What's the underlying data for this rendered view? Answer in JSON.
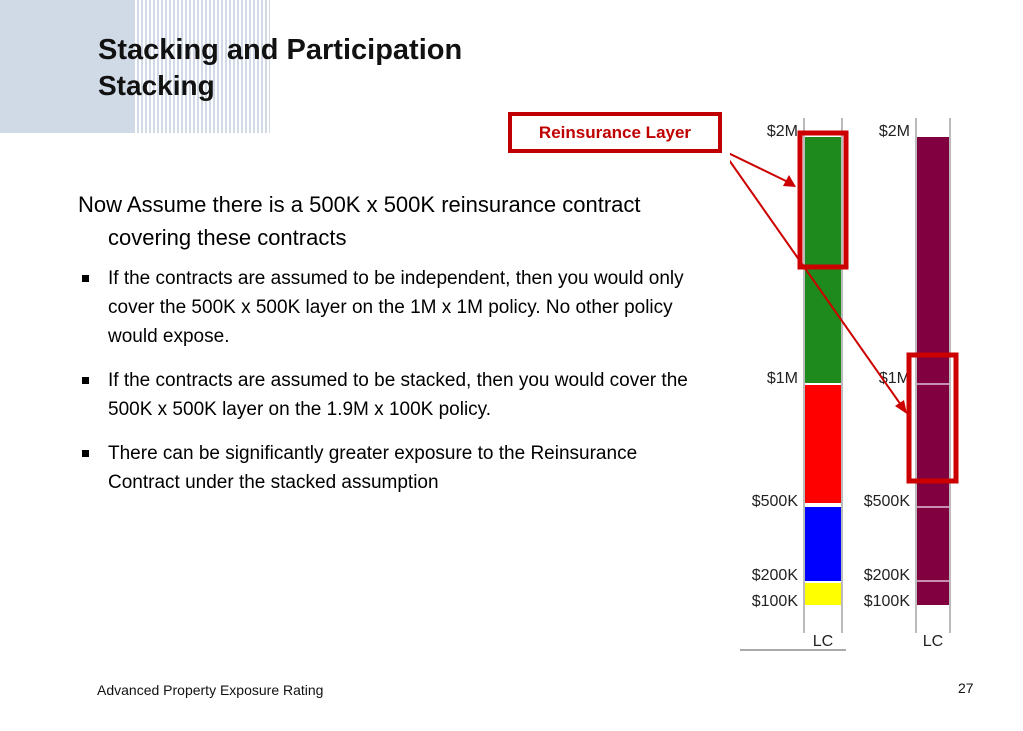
{
  "slide": {
    "title": "Stacking and Participation",
    "subtitle": "Stacking"
  },
  "body": {
    "lead": "Now Assume there is a 500K x 500K reinsurance contract covering these contracts",
    "bullets": [
      "If the contracts are assumed to be independent, then you would only cover the 500K x 500K layer on the 1M x 1M policy.  No other policy would expose.",
      "If the contracts are assumed to be stacked, then you would cover the 500K x 500K layer on the 1.9M x 100K policy.",
      "There can be significantly greater exposure to the Reinsurance Contract under the stacked assumption"
    ]
  },
  "callout": {
    "label": "Reinsurance Layer",
    "color": "#c00000"
  },
  "diagram": {
    "left_bar": {
      "labels": [
        "$2M",
        "$1M",
        "$500K",
        "$200K",
        "$100K",
        "LC"
      ],
      "segments": [
        {
          "from": "$1M",
          "to": "$2M",
          "color": "#1e8a1e"
        },
        {
          "from": "$500K",
          "to": "$1M",
          "color": "#ff0000"
        },
        {
          "from": "$200K",
          "to": "$500K",
          "color": "#0000ff"
        },
        {
          "from": "$100K",
          "to": "$200K",
          "color": "#ffff00"
        }
      ]
    },
    "right_bar": {
      "labels": [
        "$2M",
        "$1M",
        "$500K",
        "$200K",
        "$100K",
        "LC"
      ],
      "segments": [
        {
          "from": "$100K",
          "to": "$2M",
          "color": "#800040"
        }
      ]
    }
  },
  "footer": {
    "left": "Advanced Property Exposure Rating",
    "page_number": "27"
  }
}
